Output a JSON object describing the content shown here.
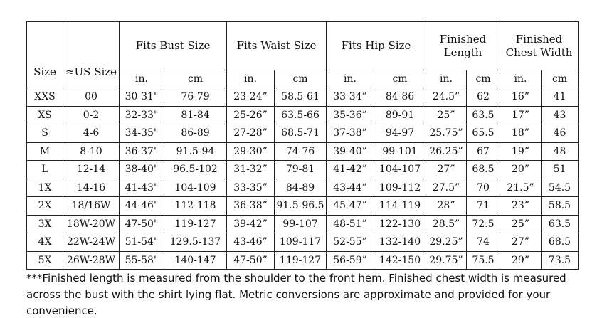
{
  "table": {
    "headers": [
      "Size",
      "≈US Size",
      "Fits Bust Size",
      "Fits Waist Size",
      "Fits Hip Size",
      "Finished Length",
      "Finished Chest Width"
    ],
    "units": [
      "in.",
      "cm",
      "in.",
      "cm",
      "in.",
      "cm",
      "in.",
      "cm",
      "in.",
      "cm"
    ],
    "rows": [
      [
        "XXS",
        "00",
        "30-31\"",
        "76-79",
        "23-24”",
        "58.5-61",
        "33-34”",
        "84-86",
        "24.5”",
        "62",
        "16”",
        "41"
      ],
      [
        "XS",
        "0-2",
        "32-33\"",
        "81-84",
        "25-26”",
        "63.5-66",
        "35-36”",
        "89-91",
        "25”",
        "63.5",
        "17”",
        "43"
      ],
      [
        "S",
        "4-6",
        "34-35\"",
        "86-89",
        "27-28”",
        "68.5-71",
        "37-38”",
        "94-97",
        "25.75”",
        "65.5",
        "18”",
        "46"
      ],
      [
        "M",
        "8-10",
        "36-37\"",
        "91.5-94",
        "29-30”",
        "74-76",
        "39-40”",
        "99-101",
        "26.25”",
        "67",
        "19”",
        "48"
      ],
      [
        "L",
        "12-14",
        "38-40\"",
        "96.5-102",
        "31-32”",
        "79-81",
        "41-42”",
        "104-107",
        "27”",
        "68.5",
        "20”",
        "51"
      ],
      [
        "1X",
        "14-16",
        "41-43\"",
        "104-109",
        "33-35”",
        "84-89",
        "43-44”",
        "109-112",
        "27.5”",
        "70",
        "21.5”",
        "54.5"
      ],
      [
        "2X",
        "18/16W",
        "44-46\"",
        "112-118",
        "36-38”",
        "91.5-96.5",
        "45-47”",
        "114-119",
        "28”",
        "71",
        "23”",
        "58.5"
      ],
      [
        "3X",
        "18W-20W",
        "47-50\"",
        "119-127",
        "39-42”",
        "99-107",
        "48-51”",
        "122-130",
        "28.5”",
        "72.5",
        "25”",
        "63.5"
      ],
      [
        "4X",
        "22W-24W",
        "51-54\"",
        "129.5-137",
        "43-46”",
        "109-117",
        "52-55”",
        "132-140",
        "29.25”",
        "74",
        "27”",
        "68.5"
      ],
      [
        "5X",
        "26W-28W",
        "55-58\"",
        "140-147",
        "47-50”",
        "119-127",
        "56-59”",
        "142-150",
        "29.75”",
        "75.5",
        "29”",
        "73.5"
      ]
    ]
  },
  "footnote": "***Finished length is measured from the shoulder to the front hem. Finished chest width is measured across the bust with the shirt lying flat. Metric conversions are approximate and provided for your convenience."
}
